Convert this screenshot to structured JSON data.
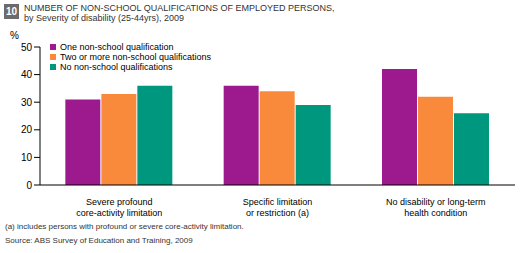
{
  "chart_data": {
    "type": "bar",
    "figure_number": "10",
    "title": "NUMBER OF NON-SCHOOL QUALIFICATIONS OF EMPLOYED PERSONS,",
    "subtitle": "by Severity of disability (25-44yrs), 2009",
    "ylabel": "%",
    "categories": [
      "Severe profound\ncore-activity limitation",
      "Specific limitation\nor restriction (a)",
      "No disability or long-term\nhealth condition"
    ],
    "series": [
      {
        "name": "One non-school qualification",
        "color": "#9c1a8e",
        "values": [
          31,
          36,
          42
        ]
      },
      {
        "name": "Two or more non-school qualifications",
        "color": "#f98a3c",
        "values": [
          33,
          34,
          32
        ]
      },
      {
        "name": "No non-school qualifications",
        "color": "#00977f",
        "values": [
          36,
          29,
          26
        ]
      }
    ],
    "ylim": [
      0,
      50
    ],
    "yticks": [
      0,
      10,
      20,
      30,
      40,
      50
    ],
    "grid": false,
    "legend": "upper left",
    "footnote": "(a) includes persons with profound or severe core-activity limitation.",
    "source": "Source: ABS Survey of Education and Training, 2009"
  }
}
